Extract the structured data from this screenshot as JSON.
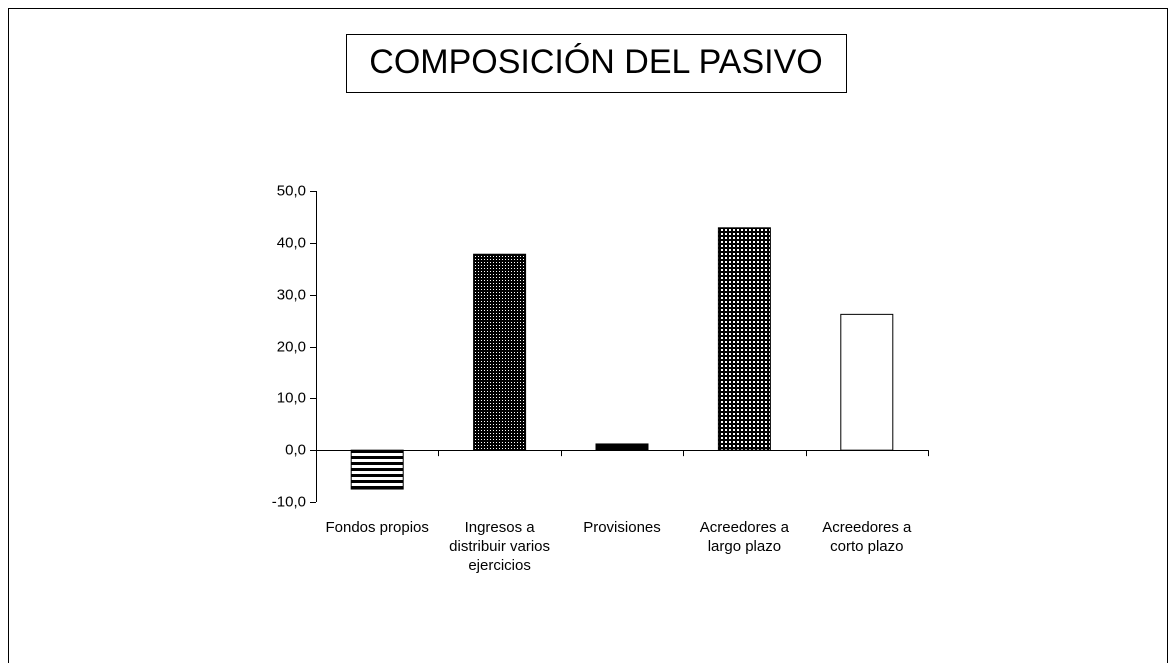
{
  "chart_data": {
    "type": "bar",
    "title": "COMPOSICIÓN DEL PASIVO",
    "categories": [
      "Fondos propios",
      "Ingresos a distribuir varios ejercicios",
      "Provisiones",
      "Acreedores a largo plazo",
      "Acreedores a corto plazo"
    ],
    "values": [
      -7.5,
      37.8,
      1.2,
      42.9,
      26.2
    ],
    "ylim": [
      -10,
      50
    ],
    "yticks": [
      {
        "value": -10,
        "label": "-10,0"
      },
      {
        "value": 0,
        "label": "0,0"
      },
      {
        "value": 10,
        "label": "10,0"
      },
      {
        "value": 20,
        "label": "20,0"
      },
      {
        "value": 30,
        "label": "30,0"
      },
      {
        "value": 40,
        "label": "40,0"
      },
      {
        "value": 50,
        "label": "50,0"
      }
    ]
  }
}
